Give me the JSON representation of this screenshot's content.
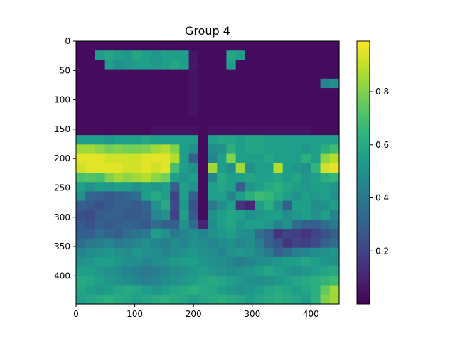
{
  "chart_data": {
    "type": "heatmap",
    "title": "Group 4",
    "xlabel": "",
    "ylabel": "",
    "xlim": [
      0,
      448
    ],
    "ylim": [
      448,
      0
    ],
    "x_ticks": [
      0,
      100,
      200,
      300,
      400
    ],
    "y_ticks": [
      0,
      50,
      100,
      150,
      200,
      250,
      300,
      350,
      400
    ],
    "colormap": "viridis",
    "colorbar": {
      "range": [
        0.0,
        0.99
      ],
      "ticks": [
        0.2,
        0.4,
        0.6,
        0.8
      ],
      "tick_labels": [
        "0.2",
        "0.4",
        "0.6",
        "0.8"
      ]
    },
    "grid": false,
    "grid_cell_size": 16,
    "values": [
      [
        0.03,
        0.03,
        0.03,
        0.03,
        0.03,
        0.03,
        0.03,
        0.03,
        0.03,
        0.03,
        0.03,
        0.03,
        0.03,
        0.03,
        0.03,
        0.03,
        0.03,
        0.03,
        0.03,
        0.03,
        0.03,
        0.03,
        0.03,
        0.03,
        0.03,
        0.03,
        0.03,
        0.03
      ],
      [
        0.03,
        0.03,
        0.55,
        0.58,
        0.55,
        0.52,
        0.58,
        0.55,
        0.52,
        0.55,
        0.55,
        0.55,
        0.06,
        0.03,
        0.03,
        0.03,
        0.58,
        0.55,
        0.03,
        0.03,
        0.03,
        0.03,
        0.03,
        0.03,
        0.03,
        0.03,
        0.03,
        0.03
      ],
      [
        0.03,
        0.03,
        0.03,
        0.55,
        0.5,
        0.52,
        0.55,
        0.55,
        0.52,
        0.55,
        0.58,
        0.55,
        0.06,
        0.03,
        0.03,
        0.03,
        0.55,
        0.03,
        0.03,
        0.03,
        0.03,
        0.03,
        0.03,
        0.03,
        0.03,
        0.03,
        0.03,
        0.03
      ],
      [
        0.03,
        0.03,
        0.03,
        0.03,
        0.03,
        0.03,
        0.03,
        0.03,
        0.03,
        0.03,
        0.03,
        0.03,
        0.05,
        0.03,
        0.03,
        0.03,
        0.03,
        0.03,
        0.03,
        0.03,
        0.03,
        0.03,
        0.03,
        0.03,
        0.03,
        0.03,
        0.03,
        0.03
      ],
      [
        0.03,
        0.03,
        0.03,
        0.03,
        0.03,
        0.03,
        0.03,
        0.03,
        0.03,
        0.03,
        0.03,
        0.03,
        0.05,
        0.03,
        0.03,
        0.03,
        0.03,
        0.03,
        0.03,
        0.03,
        0.03,
        0.03,
        0.03,
        0.03,
        0.03,
        0.03,
        0.45,
        0.5
      ],
      [
        0.03,
        0.03,
        0.03,
        0.03,
        0.03,
        0.03,
        0.03,
        0.03,
        0.03,
        0.03,
        0.03,
        0.03,
        0.05,
        0.03,
        0.03,
        0.03,
        0.03,
        0.03,
        0.03,
        0.03,
        0.03,
        0.03,
        0.03,
        0.03,
        0.03,
        0.03,
        0.03,
        0.03
      ],
      [
        0.03,
        0.03,
        0.03,
        0.03,
        0.03,
        0.03,
        0.03,
        0.03,
        0.03,
        0.03,
        0.03,
        0.03,
        0.05,
        0.03,
        0.03,
        0.03,
        0.03,
        0.03,
        0.03,
        0.03,
        0.03,
        0.03,
        0.03,
        0.03,
        0.03,
        0.03,
        0.03,
        0.03
      ],
      [
        0.03,
        0.03,
        0.03,
        0.03,
        0.03,
        0.03,
        0.03,
        0.03,
        0.03,
        0.03,
        0.03,
        0.03,
        0.05,
        0.03,
        0.03,
        0.03,
        0.03,
        0.03,
        0.03,
        0.03,
        0.03,
        0.03,
        0.03,
        0.03,
        0.03,
        0.03,
        0.03,
        0.03
      ],
      [
        0.03,
        0.03,
        0.03,
        0.03,
        0.03,
        0.03,
        0.03,
        0.03,
        0.03,
        0.03,
        0.03,
        0.03,
        0.03,
        0.03,
        0.03,
        0.03,
        0.03,
        0.03,
        0.03,
        0.03,
        0.03,
        0.03,
        0.03,
        0.03,
        0.03,
        0.03,
        0.03,
        0.03
      ],
      [
        0.03,
        0.03,
        0.03,
        0.03,
        0.03,
        0.03,
        0.03,
        0.03,
        0.05,
        0.05,
        0.05,
        0.05,
        0.05,
        0.03,
        0.05,
        0.05,
        0.05,
        0.05,
        0.05,
        0.05,
        0.05,
        0.05,
        0.05,
        0.05,
        0.05,
        0.03,
        0.03,
        0.03
      ],
      [
        0.55,
        0.55,
        0.55,
        0.52,
        0.55,
        0.55,
        0.55,
        0.58,
        0.55,
        0.55,
        0.55,
        0.55,
        0.55,
        0.03,
        0.55,
        0.58,
        0.58,
        0.55,
        0.58,
        0.58,
        0.55,
        0.55,
        0.55,
        0.55,
        0.55,
        0.55,
        0.55,
        0.55
      ],
      [
        0.85,
        0.85,
        0.82,
        0.78,
        0.8,
        0.78,
        0.78,
        0.8,
        0.85,
        0.88,
        0.8,
        0.55,
        0.5,
        0.03,
        0.48,
        0.5,
        0.62,
        0.55,
        0.58,
        0.58,
        0.55,
        0.55,
        0.55,
        0.55,
        0.52,
        0.55,
        0.62,
        0.68
      ],
      [
        0.95,
        0.95,
        0.95,
        0.92,
        0.92,
        0.92,
        0.92,
        0.95,
        0.95,
        0.95,
        0.88,
        0.55,
        0.3,
        0.03,
        0.45,
        0.55,
        0.8,
        0.55,
        0.55,
        0.55,
        0.58,
        0.55,
        0.55,
        0.55,
        0.62,
        0.55,
        0.82,
        0.88
      ],
      [
        0.92,
        0.95,
        0.95,
        0.95,
        0.95,
        0.92,
        0.92,
        0.95,
        0.92,
        0.95,
        0.7,
        0.55,
        0.5,
        0.03,
        0.85,
        0.55,
        0.5,
        0.85,
        0.5,
        0.55,
        0.55,
        0.88,
        0.55,
        0.52,
        0.5,
        0.65,
        0.92,
        0.95
      ],
      [
        0.7,
        0.72,
        0.7,
        0.8,
        0.85,
        0.82,
        0.85,
        0.88,
        0.82,
        0.78,
        0.55,
        0.52,
        0.55,
        0.03,
        0.45,
        0.6,
        0.55,
        0.55,
        0.58,
        0.55,
        0.55,
        0.58,
        0.55,
        0.58,
        0.52,
        0.55,
        0.62,
        0.65
      ],
      [
        0.55,
        0.5,
        0.55,
        0.52,
        0.55,
        0.55,
        0.5,
        0.55,
        0.52,
        0.55,
        0.3,
        0.55,
        0.5,
        0.03,
        0.55,
        0.58,
        0.55,
        0.3,
        0.52,
        0.55,
        0.6,
        0.62,
        0.58,
        0.55,
        0.52,
        0.55,
        0.55,
        0.52
      ],
      [
        0.5,
        0.32,
        0.3,
        0.28,
        0.3,
        0.32,
        0.35,
        0.55,
        0.6,
        0.55,
        0.2,
        0.55,
        0.3,
        0.03,
        0.55,
        0.55,
        0.45,
        0.55,
        0.62,
        0.68,
        0.65,
        0.6,
        0.55,
        0.5,
        0.55,
        0.52,
        0.55,
        0.5
      ],
      [
        0.3,
        0.28,
        0.25,
        0.28,
        0.3,
        0.3,
        0.28,
        0.32,
        0.5,
        0.6,
        0.22,
        0.52,
        0.25,
        0.03,
        0.4,
        0.48,
        0.55,
        0.15,
        0.1,
        0.55,
        0.62,
        0.5,
        0.3,
        0.55,
        0.55,
        0.48,
        0.5,
        0.55
      ],
      [
        0.25,
        0.22,
        0.28,
        0.3,
        0.3,
        0.28,
        0.28,
        0.3,
        0.45,
        0.5,
        0.2,
        0.55,
        0.28,
        0.03,
        0.5,
        0.55,
        0.58,
        0.55,
        0.5,
        0.52,
        0.55,
        0.55,
        0.48,
        0.52,
        0.55,
        0.5,
        0.55,
        0.45
      ],
      [
        0.28,
        0.25,
        0.3,
        0.28,
        0.3,
        0.32,
        0.3,
        0.28,
        0.35,
        0.3,
        0.3,
        0.5,
        0.35,
        0.1,
        0.48,
        0.55,
        0.58,
        0.52,
        0.55,
        0.55,
        0.52,
        0.45,
        0.5,
        0.35,
        0.3,
        0.3,
        0.35,
        0.4
      ],
      [
        0.3,
        0.3,
        0.35,
        0.32,
        0.3,
        0.35,
        0.38,
        0.4,
        0.55,
        0.5,
        0.4,
        0.45,
        0.48,
        0.45,
        0.5,
        0.52,
        0.55,
        0.5,
        0.48,
        0.35,
        0.3,
        0.15,
        0.2,
        0.18,
        0.15,
        0.2,
        0.25,
        0.3
      ],
      [
        0.35,
        0.4,
        0.42,
        0.45,
        0.4,
        0.42,
        0.45,
        0.48,
        0.45,
        0.42,
        0.48,
        0.45,
        0.5,
        0.48,
        0.45,
        0.48,
        0.5,
        0.45,
        0.48,
        0.42,
        0.3,
        0.25,
        0.15,
        0.2,
        0.18,
        0.22,
        0.3,
        0.35
      ],
      [
        0.45,
        0.48,
        0.5,
        0.52,
        0.5,
        0.48,
        0.52,
        0.5,
        0.48,
        0.45,
        0.48,
        0.5,
        0.52,
        0.5,
        0.48,
        0.45,
        0.5,
        0.52,
        0.5,
        0.45,
        0.4,
        0.3,
        0.35,
        0.42,
        0.45,
        0.48,
        0.5,
        0.52
      ],
      [
        0.5,
        0.52,
        0.55,
        0.55,
        0.52,
        0.5,
        0.48,
        0.45,
        0.48,
        0.5,
        0.52,
        0.55,
        0.55,
        0.52,
        0.5,
        0.48,
        0.45,
        0.42,
        0.45,
        0.48,
        0.5,
        0.52,
        0.55,
        0.55,
        0.58,
        0.55,
        0.52,
        0.5
      ],
      [
        0.55,
        0.55,
        0.52,
        0.5,
        0.48,
        0.45,
        0.42,
        0.4,
        0.42,
        0.45,
        0.48,
        0.5,
        0.52,
        0.55,
        0.52,
        0.5,
        0.48,
        0.5,
        0.52,
        0.55,
        0.58,
        0.55,
        0.52,
        0.5,
        0.52,
        0.55,
        0.58,
        0.6
      ],
      [
        0.6,
        0.58,
        0.55,
        0.52,
        0.5,
        0.48,
        0.45,
        0.42,
        0.45,
        0.48,
        0.5,
        0.52,
        0.55,
        0.58,
        0.6,
        0.58,
        0.55,
        0.52,
        0.5,
        0.48,
        0.5,
        0.52,
        0.55,
        0.58,
        0.6,
        0.62,
        0.65,
        0.68
      ],
      [
        0.58,
        0.55,
        0.52,
        0.55,
        0.58,
        0.6,
        0.58,
        0.55,
        0.52,
        0.55,
        0.58,
        0.6,
        0.62,
        0.6,
        0.58,
        0.55,
        0.52,
        0.5,
        0.52,
        0.55,
        0.58,
        0.6,
        0.58,
        0.55,
        0.58,
        0.62,
        0.75,
        0.85
      ],
      [
        0.55,
        0.58,
        0.6,
        0.62,
        0.6,
        0.58,
        0.55,
        0.58,
        0.6,
        0.62,
        0.6,
        0.58,
        0.55,
        0.58,
        0.6,
        0.62,
        0.6,
        0.58,
        0.55,
        0.58,
        0.6,
        0.62,
        0.6,
        0.58,
        0.55,
        0.62,
        0.8,
        0.85
      ]
    ]
  }
}
